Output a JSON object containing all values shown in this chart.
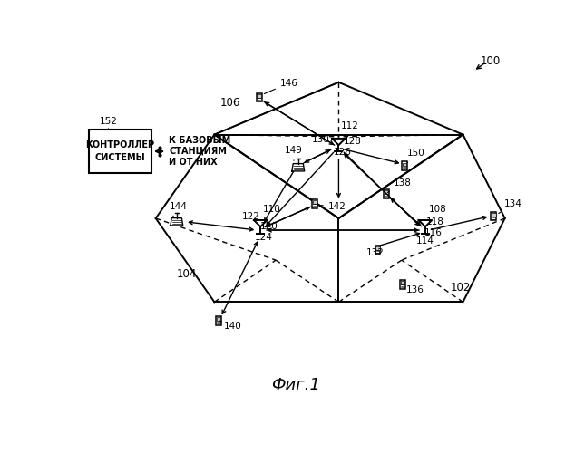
{
  "title": "Фиг.1",
  "bg_color": "#ffffff",
  "label_100": "100",
  "label_102": "102",
  "label_104": "104",
  "label_106": "106",
  "controller_text": "КОНТРОЛЛЕР\nСИСТЕМЫ",
  "to_stations_text": "К БАЗОВЫМ\nСТАНЦИЯМ\nИ ОТ НИХ",
  "label_152": "152",
  "label_112": "112",
  "label_126": "126",
  "label_128": "128",
  "label_130": "130",
  "label_108": "108",
  "label_110": "110",
  "label_114": "114",
  "label_116": "116",
  "label_118": "118",
  "label_120": "120",
  "label_122": "122",
  "label_124": "124",
  "label_132": "132",
  "label_134": "134",
  "label_136": "136",
  "label_138": "138",
  "label_140": "140",
  "label_142": "142",
  "label_144": "144",
  "label_146": "146",
  "label_149": "149",
  "label_150": "150"
}
